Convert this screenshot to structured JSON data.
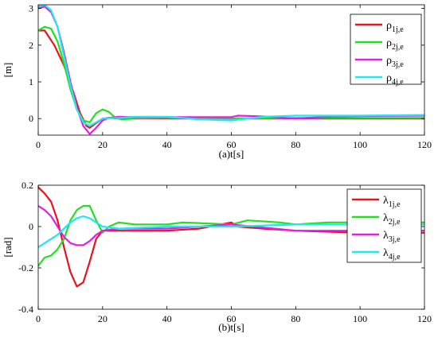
{
  "chart_data": [
    {
      "type": "line",
      "xlabel": "(a)t[s]",
      "ylabel": "[m]",
      "xlim": [
        0,
        120
      ],
      "ylim": [
        -0.45,
        3.1
      ],
      "xticks": [
        0,
        20,
        40,
        60,
        80,
        100,
        120
      ],
      "yticks": [
        0,
        1,
        2,
        3
      ],
      "grid": false,
      "legend_position": "top-right",
      "series": [
        {
          "name": "ρ1j,e",
          "symbol": "ρ",
          "subscript": "1j,e",
          "color": "#e8141b",
          "x": [
            0,
            2,
            5,
            8,
            11,
            13,
            15,
            16,
            18,
            20,
            22,
            25,
            30,
            40,
            60,
            62,
            80,
            100,
            120
          ],
          "y": [
            2.4,
            2.4,
            2.0,
            1.45,
            0.7,
            0.15,
            -0.2,
            -0.25,
            -0.12,
            0.0,
            0.02,
            0.0,
            0.0,
            0.0,
            0.0,
            0.0,
            0.0,
            0.0,
            0.0
          ]
        },
        {
          "name": "ρ2j,e",
          "symbol": "ρ",
          "subscript": "2j,e",
          "color": "#22e01f",
          "x": [
            0,
            2,
            4,
            6,
            8,
            10,
            12,
            14,
            16,
            18,
            20,
            22,
            24,
            26,
            30,
            40,
            60,
            80,
            100,
            120
          ],
          "y": [
            2.4,
            2.5,
            2.45,
            2.1,
            1.5,
            0.8,
            0.25,
            -0.05,
            -0.1,
            0.15,
            0.25,
            0.18,
            0.02,
            -0.02,
            0.0,
            0.02,
            0.0,
            0.02,
            0.02,
            0.02
          ]
        },
        {
          "name": "ρ3j,e",
          "symbol": "ρ",
          "subscript": "3j,e",
          "color": "#e81ce8",
          "x": [
            0,
            2,
            4,
            6,
            8,
            10,
            12,
            14,
            16,
            18,
            20,
            22,
            25,
            30,
            40,
            60,
            62,
            70,
            80,
            90,
            100,
            120
          ],
          "y": [
            3.0,
            3.05,
            2.9,
            2.5,
            1.8,
            1.0,
            0.3,
            -0.2,
            -0.42,
            -0.25,
            -0.05,
            0.02,
            0.05,
            0.04,
            0.04,
            0.04,
            0.08,
            0.06,
            0.0,
            0.05,
            0.07,
            0.08
          ]
        },
        {
          "name": "ρ4j,e",
          "symbol": "ρ",
          "subscript": "4j,e",
          "color": "#1ee8f0",
          "x": [
            0,
            2,
            4,
            6,
            8,
            10,
            12,
            14,
            16,
            18,
            20,
            25,
            30,
            40,
            50,
            60,
            70,
            80,
            100,
            120
          ],
          "y": [
            3.05,
            3.1,
            2.95,
            2.5,
            1.7,
            0.9,
            0.25,
            -0.1,
            -0.2,
            -0.1,
            0.0,
            0.02,
            0.05,
            0.05,
            -0.02,
            -0.05,
            0.05,
            0.08,
            0.08,
            0.1
          ]
        }
      ]
    },
    {
      "type": "line",
      "xlabel": "(b)t[s]",
      "ylabel": "[rad]",
      "xlim": [
        0,
        120
      ],
      "ylim": [
        -0.4,
        0.2
      ],
      "xticks": [
        0,
        20,
        40,
        60,
        80,
        100,
        120
      ],
      "yticks": [
        -0.4,
        -0.2,
        0,
        0.2
      ],
      "grid": false,
      "legend_position": "top-right",
      "series": [
        {
          "name": "λ1j,e",
          "symbol": "λ",
          "subscript": "1j,e",
          "color": "#e8141b",
          "x": [
            0,
            2,
            4,
            6,
            8,
            10,
            12,
            14,
            16,
            18,
            20,
            25,
            40,
            50,
            60,
            62,
            70,
            80,
            100,
            120
          ],
          "y": [
            0.19,
            0.16,
            0.12,
            0.03,
            -0.1,
            -0.22,
            -0.29,
            -0.27,
            -0.17,
            -0.06,
            -0.02,
            -0.02,
            -0.02,
            -0.01,
            0.02,
            0.0,
            -0.01,
            -0.02,
            -0.03,
            -0.03
          ]
        },
        {
          "name": "λ2j,e",
          "symbol": "λ",
          "subscript": "2j,e",
          "color": "#22e01f",
          "x": [
            0,
            2,
            4,
            6,
            8,
            10,
            12,
            14,
            16,
            18,
            20,
            22,
            25,
            30,
            40,
            45,
            60,
            65,
            75,
            80,
            90,
            100,
            120
          ],
          "y": [
            -0.19,
            -0.15,
            -0.14,
            -0.11,
            -0.06,
            0.03,
            0.08,
            0.1,
            0.1,
            0.03,
            -0.03,
            0.0,
            0.02,
            0.01,
            0.01,
            0.02,
            0.01,
            0.03,
            0.02,
            0.01,
            0.02,
            0.02,
            0.02
          ]
        },
        {
          "name": "λ3j,e",
          "symbol": "λ",
          "subscript": "3j,e",
          "color": "#e81ce8",
          "x": [
            0,
            2,
            4,
            6,
            8,
            10,
            12,
            14,
            16,
            18,
            20,
            25,
            40,
            60,
            80,
            100,
            120
          ],
          "y": [
            0.1,
            0.08,
            0.05,
            0.0,
            -0.05,
            -0.08,
            -0.09,
            -0.09,
            -0.07,
            -0.04,
            -0.02,
            -0.01,
            -0.01,
            0.01,
            -0.02,
            -0.02,
            -0.02
          ]
        },
        {
          "name": "λ4j,e",
          "symbol": "λ",
          "subscript": "4j,e",
          "color": "#1ee8f0",
          "x": [
            0,
            2,
            4,
            6,
            8,
            10,
            12,
            14,
            16,
            18,
            20,
            25,
            40,
            60,
            80,
            100,
            120
          ],
          "y": [
            -0.1,
            -0.08,
            -0.06,
            -0.04,
            -0.01,
            0.02,
            0.04,
            0.05,
            0.04,
            0.02,
            0.0,
            -0.01,
            0.0,
            0.0,
            0.01,
            0.01,
            0.01
          ]
        }
      ]
    }
  ]
}
